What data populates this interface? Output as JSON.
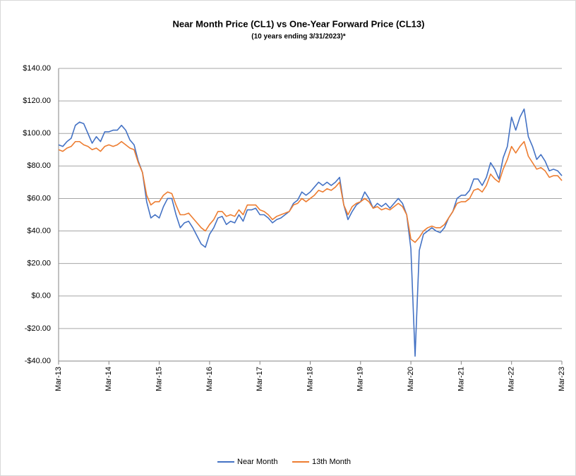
{
  "chart_data": {
    "type": "line",
    "title": "Near Month Price (CL1) vs One-Year Forward Price (CL13)",
    "subtitle": "(10 years ending  3/31/2023)*",
    "categories": [
      "Mar-13",
      null,
      null,
      null,
      null,
      null,
      null,
      null,
      null,
      null,
      null,
      null,
      "Mar-14",
      null,
      null,
      null,
      null,
      null,
      null,
      null,
      null,
      null,
      null,
      null,
      "Mar-15",
      null,
      null,
      null,
      null,
      null,
      null,
      null,
      null,
      null,
      null,
      null,
      "Mar-16",
      null,
      null,
      null,
      null,
      null,
      null,
      null,
      null,
      null,
      null,
      null,
      "Mar-17",
      null,
      null,
      null,
      null,
      null,
      null,
      null,
      null,
      null,
      null,
      null,
      "Mar-18",
      null,
      null,
      null,
      null,
      null,
      null,
      null,
      null,
      null,
      null,
      null,
      "Mar-19",
      null,
      null,
      null,
      null,
      null,
      null,
      null,
      null,
      null,
      null,
      null,
      "Mar-20",
      null,
      null,
      null,
      null,
      null,
      null,
      null,
      null,
      null,
      null,
      null,
      "Mar-21",
      null,
      null,
      null,
      null,
      null,
      null,
      null,
      null,
      null,
      null,
      null,
      "Mar-22",
      null,
      null,
      null,
      null,
      null,
      null,
      null,
      null,
      null,
      null,
      null,
      "Mar-23"
    ],
    "series": [
      {
        "name": "Near Month",
        "color": "#4472c4",
        "values": [
          93,
          92,
          95,
          97,
          105,
          107,
          106,
          100,
          94,
          98,
          95,
          101,
          101,
          102,
          102,
          105,
          102,
          96,
          93,
          83,
          76,
          58,
          48,
          50,
          48,
          55,
          60,
          60,
          50,
          42,
          45,
          46,
          42,
          37,
          32,
          30,
          38,
          42,
          48,
          49,
          44,
          46,
          45,
          50,
          46,
          53,
          53,
          54,
          50,
          50,
          48,
          45,
          47,
          48,
          50,
          52,
          57,
          59,
          64,
          62,
          64,
          67,
          70,
          68,
          70,
          68,
          70,
          73,
          56,
          47,
          52,
          56,
          58,
          64,
          60,
          54,
          57,
          55,
          57,
          54,
          57,
          60,
          57,
          50,
          29,
          -37,
          28,
          38,
          40,
          42,
          40,
          39,
          42,
          48,
          52,
          60,
          62,
          62,
          65,
          72,
          72,
          68,
          73,
          82,
          78,
          72,
          85,
          92,
          110,
          102,
          110,
          115,
          98,
          92,
          84,
          87,
          83,
          77,
          78,
          77,
          74
        ]
      },
      {
        "name": "13th Month",
        "color": "#ed7d31",
        "values": [
          90,
          89,
          91,
          92,
          95,
          95,
          93,
          92,
          90,
          91,
          89,
          92,
          93,
          92,
          93,
          95,
          93,
          91,
          90,
          82,
          76,
          62,
          56,
          58,
          58,
          62,
          64,
          63,
          56,
          50,
          50,
          51,
          48,
          45,
          42,
          40,
          44,
          47,
          52,
          52,
          49,
          50,
          49,
          53,
          50,
          56,
          56,
          56,
          53,
          52,
          50,
          47,
          49,
          50,
          51,
          52,
          56,
          57,
          60,
          58,
          60,
          62,
          65,
          64,
          66,
          65,
          67,
          70,
          56,
          50,
          55,
          57,
          58,
          60,
          58,
          54,
          55,
          53,
          54,
          53,
          55,
          57,
          55,
          50,
          35,
          33,
          36,
          40,
          42,
          43,
          42,
          42,
          44,
          48,
          52,
          57,
          58,
          58,
          60,
          65,
          66,
          64,
          68,
          75,
          72,
          70,
          78,
          84,
          92,
          88,
          92,
          95,
          86,
          82,
          78,
          79,
          77,
          73,
          74,
          74,
          71
        ]
      }
    ],
    "ylim": [
      -40,
      140
    ],
    "yticks": [
      {
        "value": -40,
        "label": "-$40.00"
      },
      {
        "value": -20,
        "label": "-$20.00"
      },
      {
        "value": 0,
        "label": "$0.00"
      },
      {
        "value": 20,
        "label": "$20.00"
      },
      {
        "value": 40,
        "label": "$40.00"
      },
      {
        "value": 60,
        "label": "$60.00"
      },
      {
        "value": 80,
        "label": "$80.00"
      },
      {
        "value": 100,
        "label": "$100.00"
      },
      {
        "value": 120,
        "label": "$120.00"
      },
      {
        "value": 140,
        "label": "$140.00"
      }
    ],
    "grid": true,
    "legend": "bottom"
  }
}
